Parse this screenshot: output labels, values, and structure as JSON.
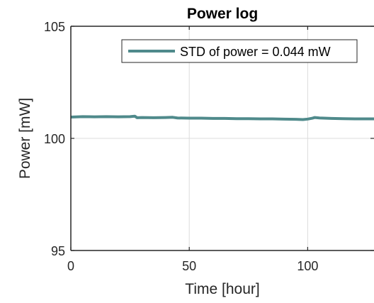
{
  "chart_data": {
    "type": "line",
    "title": "Power log",
    "xlabel": "Time [hour]",
    "ylabel": "Power [mW]",
    "xlim": [
      0,
      128
    ],
    "ylim": [
      95,
      105
    ],
    "xticks": [
      0,
      50,
      100
    ],
    "yticks": [
      95,
      100,
      105
    ],
    "grid": true,
    "legend": {
      "placement": "top-right"
    },
    "series": [
      {
        "name": "STD of power = 0.044 mW",
        "color": "#4f8a8b",
        "x": [
          0,
          5,
          10,
          15,
          20,
          25,
          27,
          28,
          30,
          35,
          40,
          43,
          45,
          50,
          55,
          60,
          65,
          70,
          75,
          80,
          85,
          90,
          95,
          98,
          100,
          102,
          103,
          105,
          110,
          115,
          120,
          125,
          128
        ],
        "y": [
          100.95,
          100.97,
          100.96,
          100.97,
          100.96,
          100.97,
          100.99,
          100.92,
          100.93,
          100.92,
          100.93,
          100.94,
          100.91,
          100.9,
          100.9,
          100.89,
          100.89,
          100.88,
          100.88,
          100.87,
          100.87,
          100.86,
          100.85,
          100.84,
          100.86,
          100.9,
          100.93,
          100.91,
          100.89,
          100.88,
          100.87,
          100.87,
          100.87
        ]
      }
    ]
  }
}
